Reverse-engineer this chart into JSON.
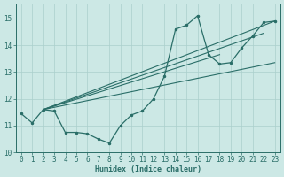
{
  "background_color": "#cce8e5",
  "line_color": "#2a6e68",
  "grid_color": "#aacfcc",
  "xlim": [
    -0.5,
    23.5
  ],
  "ylim": [
    10.0,
    15.55
  ],
  "yticks": [
    10,
    11,
    12,
    13,
    14,
    15
  ],
  "xticks": [
    0,
    1,
    2,
    3,
    4,
    5,
    6,
    7,
    8,
    9,
    10,
    11,
    12,
    13,
    14,
    15,
    16,
    17,
    18,
    19,
    20,
    21,
    22,
    23
  ],
  "xlabel": "Humidex (Indice chaleur)",
  "main_x": [
    0,
    1,
    2,
    3,
    4,
    5,
    6,
    7,
    8,
    9,
    10,
    11,
    12,
    13,
    14,
    15,
    16,
    17,
    18,
    19,
    20,
    21,
    22,
    23
  ],
  "main_y": [
    11.45,
    11.1,
    11.6,
    11.55,
    10.75,
    10.75,
    10.7,
    10.5,
    10.35,
    11.0,
    11.4,
    11.55,
    12.0,
    12.85,
    14.6,
    14.75,
    15.1,
    13.65,
    13.3,
    13.35,
    13.9,
    14.35,
    14.85,
    14.9
  ],
  "straight_lines": [
    [
      [
        2,
        23
      ],
      [
        11.6,
        14.9
      ]
    ],
    [
      [
        2,
        23
      ],
      [
        11.6,
        13.35
      ]
    ],
    [
      [
        2,
        18
      ],
      [
        11.6,
        13.65
      ]
    ],
    [
      [
        2,
        22
      ],
      [
        11.6,
        14.45
      ]
    ]
  ]
}
